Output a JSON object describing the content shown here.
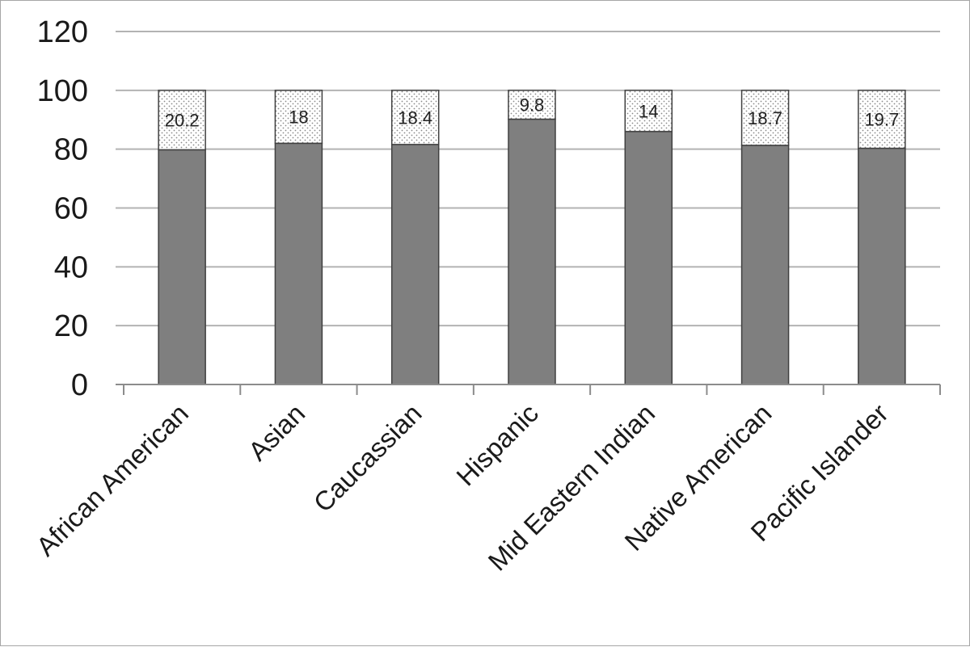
{
  "chart_data": {
    "type": "bar",
    "stacked": true,
    "categories": [
      "African American",
      "Asian",
      "Caucassian",
      "Hispanic",
      "Mid Eastern Indian",
      "Native American",
      "Pacific Islander"
    ],
    "series": [
      {
        "values": [
          79.8,
          82.0,
          81.6,
          90.2,
          86.0,
          81.3,
          80.3
        ],
        "color": "#7f7f7f"
      },
      {
        "values": [
          20.2,
          18,
          18.4,
          9.8,
          14,
          18.7,
          19.7
        ],
        "color": "#ffffff",
        "pattern": "dotted"
      }
    ],
    "data_labels": [
      "20.2",
      "18",
      "18.4",
      "9.8",
      "14",
      "18.7",
      "19.7"
    ],
    "y_ticks": [
      "0",
      "20",
      "40",
      "60",
      "80",
      "100",
      "120"
    ],
    "ylim": [
      0,
      120
    ],
    "grid": true,
    "legend": "none",
    "x_tick_rotation": "-45deg"
  }
}
